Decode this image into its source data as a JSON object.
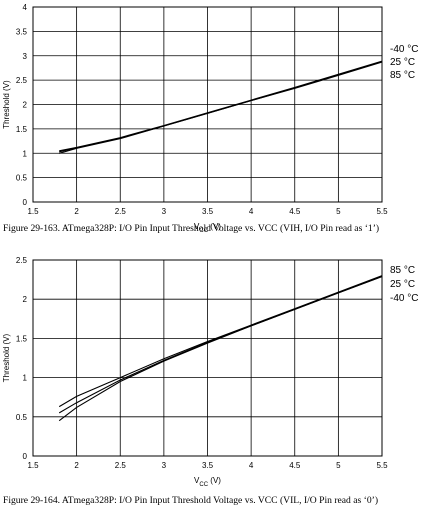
{
  "chart_data": [
    {
      "type": "line",
      "ylabel": "Threshold (V)",
      "xlabel_main": "V",
      "xlabel_sub": "CC",
      "xlabel_suffix": " (V)",
      "xlim": [
        1.5,
        5.5
      ],
      "ylim": [
        0,
        4
      ],
      "xticks": [
        "1.5",
        "2",
        "2.5",
        "3",
        "3.5",
        "4",
        "4.5",
        "5",
        "5.5"
      ],
      "yticks": [
        "0",
        "0.5",
        "1",
        "1.5",
        "2",
        "2.5",
        "3",
        "3.5",
        "4"
      ],
      "grid": true,
      "legend_placement": "right",
      "series": [
        {
          "name": "-40 °C",
          "x": [
            1.8,
            2.0,
            2.5,
            3.0,
            3.5,
            4.0,
            4.5,
            5.0,
            5.5
          ],
          "y": [
            1.0,
            1.1,
            1.3,
            1.56,
            1.82,
            2.08,
            2.33,
            2.6,
            2.87
          ]
        },
        {
          "name": "25 °C",
          "x": [
            1.8,
            2.0,
            2.5,
            3.0,
            3.5,
            4.0,
            4.5,
            5.0,
            5.5
          ],
          "y": [
            1.03,
            1.11,
            1.31,
            1.56,
            1.82,
            2.08,
            2.34,
            2.61,
            2.88
          ]
        },
        {
          "name": "85 °C",
          "x": [
            1.8,
            2.0,
            2.5,
            3.0,
            3.5,
            4.0,
            4.5,
            5.0,
            5.5
          ],
          "y": [
            1.05,
            1.12,
            1.32,
            1.57,
            1.83,
            2.09,
            2.35,
            2.62,
            2.89
          ]
        }
      ],
      "caption": "Figure 29-163. ATmega328P: I/O Pin Input Threshold Voltage vs. VCC (VIH, I/O Pin read as ‘1’)"
    },
    {
      "type": "line",
      "ylabel": "Threshold (V)",
      "xlabel_main": "V",
      "xlabel_sub": "CC",
      "xlabel_suffix": " (V)",
      "xlim": [
        1.5,
        5.5
      ],
      "ylim": [
        0,
        2.5
      ],
      "xticks": [
        "1.5",
        "2",
        "2.5",
        "3",
        "3.5",
        "4",
        "4.5",
        "5",
        "5.5"
      ],
      "yticks": [
        "0",
        "0.5",
        "1",
        "1.5",
        "2",
        "2.5"
      ],
      "grid": true,
      "legend_placement": "right",
      "series": [
        {
          "name": "85 °C",
          "x": [
            1.8,
            2.0,
            2.5,
            3.0,
            3.5,
            4.0,
            4.5,
            5.0,
            5.5
          ],
          "y": [
            0.45,
            0.62,
            0.95,
            1.21,
            1.44,
            1.66,
            1.87,
            2.08,
            2.29
          ]
        },
        {
          "name": "25 °C",
          "x": [
            1.8,
            2.0,
            2.5,
            3.0,
            3.5,
            4.0,
            4.5,
            5.0,
            5.5
          ],
          "y": [
            0.55,
            0.68,
            0.97,
            1.22,
            1.45,
            1.66,
            1.87,
            2.08,
            2.29
          ]
        },
        {
          "name": "-40 °C",
          "x": [
            1.8,
            2.0,
            2.5,
            3.0,
            3.5,
            4.0,
            4.5,
            5.0,
            5.5
          ],
          "y": [
            0.63,
            0.76,
            1.0,
            1.24,
            1.46,
            1.67,
            1.88,
            2.09,
            2.3
          ]
        }
      ],
      "caption": "Figure 29-164. ATmega328P: I/O Pin Input Threshold Voltage vs. VCC (VIL, I/O Pin read as ‘0’)"
    }
  ]
}
